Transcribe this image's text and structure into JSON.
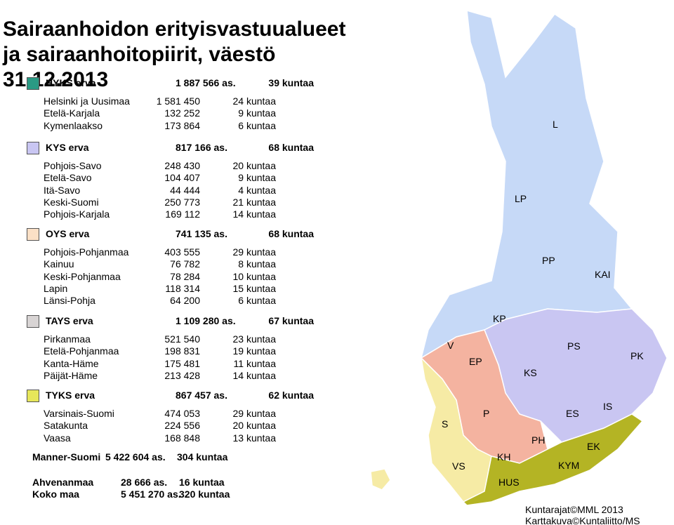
{
  "title": [
    "Sairaanhoidon erityisvastuualueet",
    "ja sairaanhoitopiirit, väestö",
    "31.12.2013"
  ],
  "groups": [
    {
      "name": "HYKS erva",
      "population": "1 887 566 as.",
      "municipalities": "39 kuntaa",
      "districts": [
        [
          "Helsinki ja Uusimaa",
          "1 581 450",
          "24 kuntaa"
        ],
        [
          "Etelä-Karjala",
          "132 252",
          "9 kuntaa"
        ],
        [
          "Kymenlaakso",
          "173 864",
          "6 kuntaa"
        ]
      ]
    },
    {
      "name": "KYS erva",
      "population": "817 166 as.",
      "municipalities": "68 kuntaa",
      "districts": [
        [
          "Pohjois-Savo",
          "248 430",
          "20 kuntaa"
        ],
        [
          "Etelä-Savo",
          "104 407",
          "9 kuntaa"
        ],
        [
          "Itä-Savo",
          "44 444",
          "4 kuntaa"
        ],
        [
          "Keski-Suomi",
          "250 773",
          "21 kuntaa"
        ],
        [
          "Pohjois-Karjala",
          "169 112",
          "14 kuntaa"
        ]
      ]
    },
    {
      "name": "OYS erva",
      "population": "741 135 as.",
      "municipalities": "68 kuntaa",
      "districts": [
        [
          "Pohjois-Pohjanmaa",
          "403 555",
          "29 kuntaa"
        ],
        [
          "Kainuu",
          "76 782",
          "8 kuntaa"
        ],
        [
          "Keski-Pohjanmaa",
          "78 284",
          "10 kuntaa"
        ],
        [
          "Lapin",
          "118 314",
          "15 kuntaa"
        ],
        [
          "Länsi-Pohja",
          "64 200",
          "6 kuntaa"
        ]
      ]
    },
    {
      "name": "TAYS erva",
      "population": "1 109 280 as.",
      "municipalities": "67 kuntaa",
      "districts": [
        [
          "Pirkanmaa",
          "521 540",
          "23 kuntaa"
        ],
        [
          "Etelä-Pohjanmaa",
          "198 831",
          "19 kuntaa"
        ],
        [
          "Kanta-Häme",
          "175 481",
          "11 kuntaa"
        ],
        [
          "Päijät-Häme",
          "213 428",
          "14 kuntaa"
        ]
      ]
    },
    {
      "name": "TYKS erva",
      "population": "867 457 as.",
      "municipalities": "62 kuntaa",
      "districts": [
        [
          "Varsinais-Suomi",
          "474 053",
          "29 kuntaa"
        ],
        [
          "Satakunta",
          "224 556",
          "20 kuntaa"
        ],
        [
          "Vaasa",
          "168 848",
          "13 kuntaa"
        ]
      ]
    }
  ],
  "totals": [
    [
      "Manner-Suomi",
      "5 422 604 as.",
      "304 kuntaa"
    ],
    [
      "Ahvenanmaa",
      "28 666 as.",
      "16 kuntaa"
    ],
    [
      "Koko maa",
      "5 451 270 as.",
      "320 kuntaa"
    ]
  ],
  "map_labels": [
    "L",
    "LP",
    "PP",
    "KAI",
    "KP",
    "V",
    "EP",
    "PS",
    "PK",
    "KS",
    "S",
    "P",
    "ES",
    "IS",
    "PH",
    "EK",
    "VS",
    "KH",
    "KYM",
    "HUS"
  ],
  "credits": [
    "Kuntarajat©MML 2013",
    "Karttakuva©Kuntaliitto/MS"
  ]
}
